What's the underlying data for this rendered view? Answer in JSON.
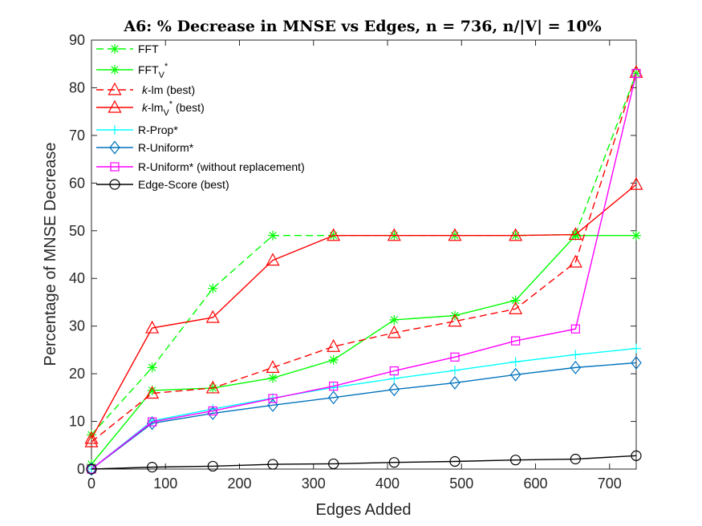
{
  "chart_data": {
    "type": "line",
    "title": "A6: % Decrease in MNSE vs Edges, n = 736, n/|V| = 10%",
    "xlabel": "Edges Added",
    "ylabel": "Percentage of MNSE Decrease",
    "xlim": [
      0,
      736
    ],
    "ylim": [
      0,
      90
    ],
    "xticks": [
      0,
      100,
      200,
      300,
      400,
      500,
      600,
      700
    ],
    "yticks": [
      0,
      10,
      20,
      30,
      40,
      50,
      60,
      70,
      80,
      90
    ],
    "x": [
      0,
      82,
      164,
      245,
      327,
      409,
      491,
      573,
      654,
      736
    ],
    "series": [
      {
        "name": "FFT",
        "label_main": "FFT",
        "color": "#00ff00",
        "dash": true,
        "marker": "asterisk",
        "values": [
          7.2,
          21.3,
          37.9,
          49.0,
          49.0,
          49.0,
          49.0,
          49.0,
          49.2,
          83.0
        ]
      },
      {
        "name": "FFT_V*",
        "label_main": "FFT",
        "label_sub": "V",
        "label_sup": "*",
        "color": "#00ff00",
        "dash": false,
        "marker": "asterisk",
        "values": [
          1.0,
          16.5,
          17.0,
          19.1,
          22.9,
          31.3,
          32.2,
          35.4,
          49.0,
          49.0
        ]
      },
      {
        "name": "k-lm (best)",
        "label_ital": "k",
        "label_main": "-lm (best)",
        "color": "#ff0000",
        "dash": true,
        "marker": "triangle",
        "values": [
          5.7,
          15.9,
          17.0,
          21.3,
          25.7,
          28.6,
          31.0,
          33.6,
          43.4,
          83.2
        ]
      },
      {
        "name": "k-lm_V* (best)",
        "label_ital": "k",
        "label_main": "-lm",
        "label_sub": "V",
        "label_sup": "*",
        "label_rest": " (best)",
        "color": "#ff0000",
        "dash": false,
        "marker": "triangle",
        "values": [
          6.4,
          29.6,
          31.8,
          43.8,
          49.0,
          49.0,
          49.0,
          49.0,
          49.2,
          59.7
        ]
      },
      {
        "name": "R-Prop*",
        "label_main": "R-Prop*",
        "color": "#00ffff",
        "dash": false,
        "marker": "plus",
        "values": [
          0.0,
          10.1,
          12.6,
          14.9,
          17.1,
          19.0,
          20.7,
          22.5,
          24.0,
          25.3
        ]
      },
      {
        "name": "R-Uniform*",
        "label_main": "R-Uniform*",
        "color": "#0072bd",
        "dash": false,
        "marker": "diamond",
        "values": [
          0.0,
          9.6,
          11.7,
          13.4,
          15.0,
          16.7,
          18.1,
          19.8,
          21.3,
          22.3
        ]
      },
      {
        "name": "R-Uniform* (without replacement)",
        "label_main": "R-Uniform* (without replacement)",
        "color": "#ff00ff",
        "dash": false,
        "marker": "square",
        "values": [
          0.0,
          9.9,
          12.2,
          14.8,
          17.4,
          20.6,
          23.5,
          26.9,
          29.4,
          83.0
        ]
      },
      {
        "name": "Edge-Score (best)",
        "label_main": "Edge-Score (best)",
        "color": "#000000",
        "dash": false,
        "marker": "circle",
        "values": [
          0.0,
          0.4,
          0.6,
          1.0,
          1.1,
          1.4,
          1.6,
          1.9,
          2.1,
          2.8
        ]
      }
    ]
  }
}
